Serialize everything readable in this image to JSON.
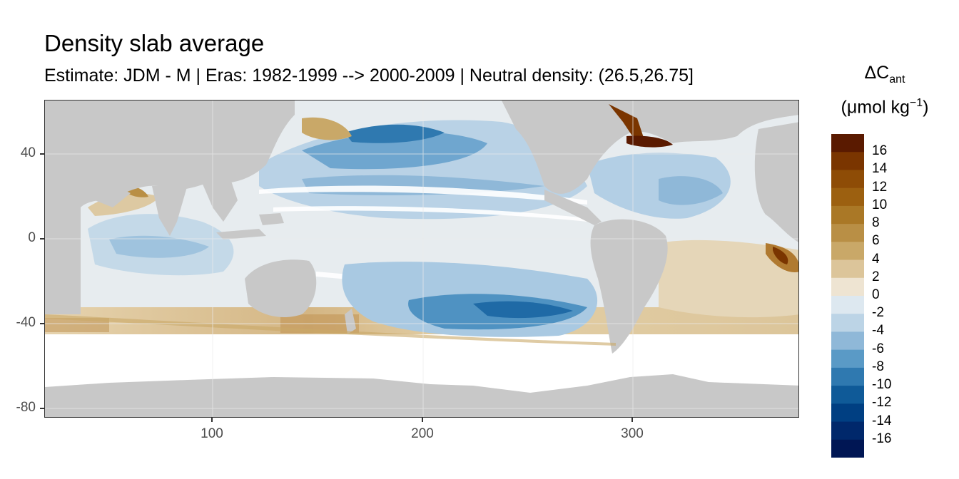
{
  "title": "Density slab average",
  "subtitle": "Estimate: JDM - M | Eras: 1982-1999 --> 2000-2009 | Neutral density: (26.5,26.75]",
  "map": {
    "x_ticks": [
      "100",
      "200",
      "300"
    ],
    "y_ticks": [
      "40",
      "0",
      "-40",
      "-80"
    ],
    "land_color": "#c8c8c8",
    "missing_color": "#ffffff"
  },
  "legend": {
    "title_main": "ΔC",
    "title_sub": "ant",
    "unit_open": "(μmol kg",
    "unit_sup": "−1",
    "unit_close": ")",
    "labels": [
      "16",
      "14",
      "12",
      "10",
      "8",
      "6",
      "4",
      "2",
      "0",
      "-2",
      "-4",
      "-6",
      "-8",
      "-10",
      "-12",
      "-14",
      "-16"
    ],
    "colors": [
      "#5a1a00",
      "#7a3500",
      "#8e4c06",
      "#9c6010",
      "#aa7826",
      "#b98f45",
      "#c9a868",
      "#dcc59a",
      "#eee4d2",
      "#dde8f0",
      "#bcd4e6",
      "#8fb8d8",
      "#5a9ac6",
      "#2f79b0",
      "#0f5a98",
      "#003f82",
      "#00286b",
      "#001654"
    ]
  }
}
